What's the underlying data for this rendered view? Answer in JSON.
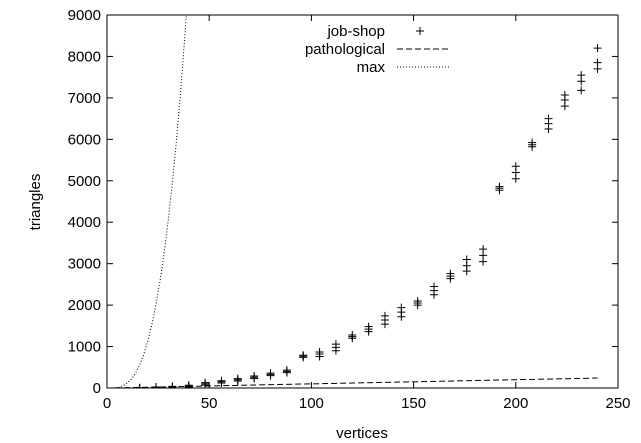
{
  "chart_data": {
    "type": "scatter",
    "title": "",
    "xlabel": "vertices",
    "ylabel": "triangles",
    "xlim": [
      0,
      250
    ],
    "ylim": [
      0,
      9000
    ],
    "x_ticks": [
      0,
      50,
      100,
      150,
      200,
      250
    ],
    "y_ticks": [
      0,
      1000,
      2000,
      3000,
      4000,
      5000,
      6000,
      7000,
      8000,
      9000
    ],
    "grid": false,
    "legend_position": "top-right",
    "series": [
      {
        "name": "job-shop",
        "style": "points-plus",
        "color": "#000000",
        "points": [
          [
            16,
            0
          ],
          [
            16,
            5
          ],
          [
            24,
            5
          ],
          [
            24,
            15
          ],
          [
            24,
            25
          ],
          [
            32,
            15
          ],
          [
            32,
            25
          ],
          [
            32,
            40
          ],
          [
            40,
            25
          ],
          [
            40,
            45
          ],
          [
            40,
            65
          ],
          [
            48,
            70
          ],
          [
            48,
            100
          ],
          [
            48,
            130
          ],
          [
            56,
            120
          ],
          [
            56,
            150
          ],
          [
            56,
            175
          ],
          [
            64,
            170
          ],
          [
            64,
            200
          ],
          [
            64,
            225
          ],
          [
            72,
            230
          ],
          [
            72,
            260
          ],
          [
            72,
            290
          ],
          [
            80,
            300
          ],
          [
            80,
            330
          ],
          [
            80,
            360
          ],
          [
            88,
            370
          ],
          [
            88,
            400
          ],
          [
            88,
            430
          ],
          [
            96,
            740
          ],
          [
            96,
            770
          ],
          [
            96,
            790
          ],
          [
            104,
            760
          ],
          [
            104,
            820
          ],
          [
            104,
            870
          ],
          [
            112,
            900
          ],
          [
            112,
            980
          ],
          [
            112,
            1060
          ],
          [
            120,
            1200
          ],
          [
            120,
            1240
          ],
          [
            120,
            1280
          ],
          [
            128,
            1360
          ],
          [
            128,
            1420
          ],
          [
            128,
            1480
          ],
          [
            136,
            1540
          ],
          [
            136,
            1640
          ],
          [
            136,
            1740
          ],
          [
            144,
            1720
          ],
          [
            144,
            1830
          ],
          [
            144,
            1940
          ],
          [
            152,
            2000
          ],
          [
            152,
            2050
          ],
          [
            152,
            2100
          ],
          [
            160,
            2250
          ],
          [
            160,
            2350
          ],
          [
            160,
            2450
          ],
          [
            168,
            2640
          ],
          [
            168,
            2700
          ],
          [
            168,
            2760
          ],
          [
            176,
            2820
          ],
          [
            176,
            2950
          ],
          [
            176,
            3100
          ],
          [
            184,
            3050
          ],
          [
            184,
            3200
          ],
          [
            184,
            3350
          ],
          [
            192,
            4770
          ],
          [
            192,
            4820
          ],
          [
            192,
            4860
          ],
          [
            200,
            5050
          ],
          [
            200,
            5200
          ],
          [
            200,
            5350
          ],
          [
            208,
            5820
          ],
          [
            208,
            5870
          ],
          [
            208,
            5920
          ],
          [
            216,
            6250
          ],
          [
            216,
            6380
          ],
          [
            216,
            6500
          ],
          [
            224,
            6800
          ],
          [
            224,
            6950
          ],
          [
            224,
            7070
          ],
          [
            232,
            7180
          ],
          [
            232,
            7400
          ],
          [
            232,
            7550
          ],
          [
            240,
            7700
          ],
          [
            240,
            7850
          ],
          [
            240,
            8200
          ]
        ]
      },
      {
        "name": "pathological",
        "style": "dashed-line",
        "color": "#000000",
        "points": [
          [
            4,
            2
          ],
          [
            40,
            40
          ],
          [
            80,
            80
          ],
          [
            120,
            120
          ],
          [
            160,
            160
          ],
          [
            200,
            200
          ],
          [
            240,
            240
          ]
        ]
      },
      {
        "name": "max",
        "style": "dotted-line",
        "color": "#000000",
        "points": [
          [
            4,
            4
          ],
          [
            6,
            20
          ],
          [
            8,
            56
          ],
          [
            10,
            120
          ],
          [
            12,
            220
          ],
          [
            14,
            364
          ],
          [
            16,
            560
          ],
          [
            18,
            816
          ],
          [
            20,
            1140
          ],
          [
            22,
            1540
          ],
          [
            24,
            2024
          ],
          [
            26,
            2600
          ],
          [
            28,
            3276
          ],
          [
            30,
            4060
          ],
          [
            32,
            4960
          ],
          [
            34,
            5984
          ],
          [
            36,
            7140
          ],
          [
            38,
            8436
          ],
          [
            39,
            9139
          ]
        ]
      }
    ]
  }
}
